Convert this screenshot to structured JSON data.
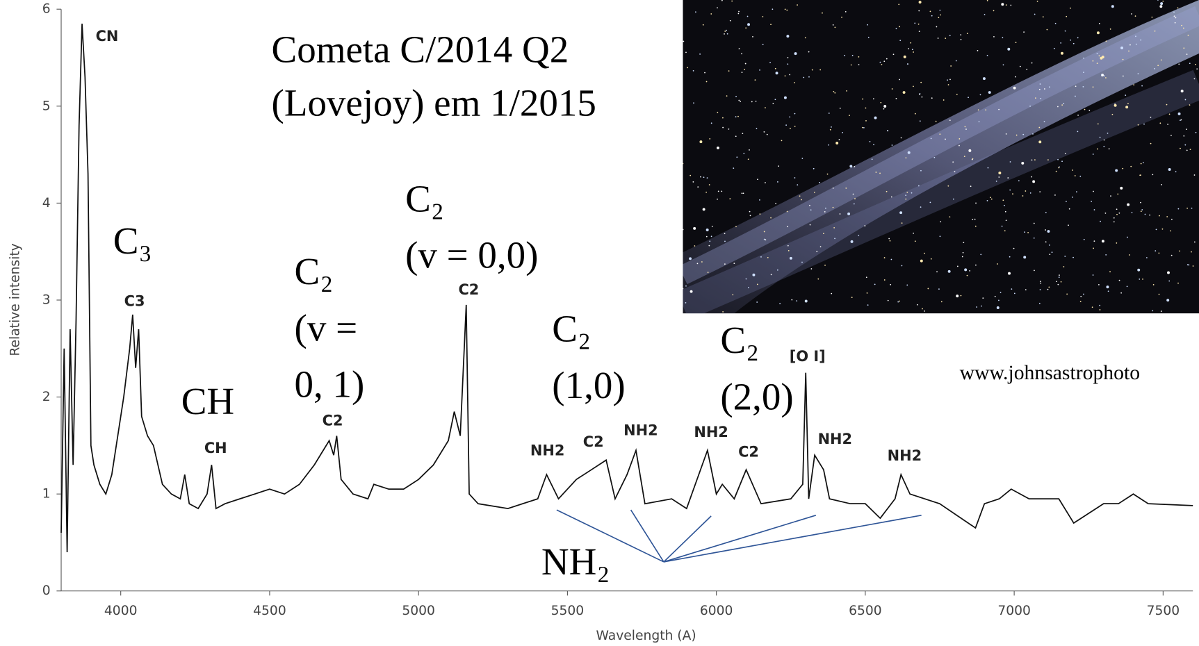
{
  "chart_data": {
    "type": "line",
    "title_lines": [
      "Cometa C/2014 Q2",
      "(Lovejoy) em 1/2015"
    ],
    "x_label": "Wavelength (A)",
    "y_label": "Relative intensity",
    "xlim": [
      3800,
      7600
    ],
    "xticks": [
      4000,
      4500,
      5000,
      5500,
      6000,
      6500,
      7000,
      7500
    ],
    "ylim": [
      0,
      6
    ],
    "yticks": [
      0,
      1,
      2,
      3,
      4,
      5,
      6
    ],
    "color": "#111111",
    "x": [
      3800,
      3810,
      3820,
      3830,
      3840,
      3850,
      3860,
      3870,
      3880,
      3890,
      3900,
      3910,
      3930,
      3950,
      3970,
      3990,
      4010,
      4030,
      4040,
      4050,
      4060,
      4070,
      4090,
      4110,
      4140,
      4170,
      4200,
      4215,
      4230,
      4260,
      4290,
      4305,
      4320,
      4350,
      4400,
      4450,
      4500,
      4550,
      4600,
      4650,
      4680,
      4700,
      4715,
      4725,
      4740,
      4780,
      4830,
      4850,
      4900,
      4950,
      5000,
      5050,
      5100,
      5120,
      5140,
      5160,
      5170,
      5200,
      5300,
      5400,
      5430,
      5470,
      5530,
      5580,
      5630,
      5660,
      5700,
      5730,
      5760,
      5850,
      5900,
      5970,
      6000,
      6020,
      6060,
      6100,
      6150,
      6250,
      6290,
      6300,
      6310,
      6330,
      6360,
      6380,
      6450,
      6500,
      6550,
      6600,
      6620,
      6650,
      6750,
      6870,
      6900,
      6950,
      6990,
      7050,
      7150,
      7200,
      7300,
      7350,
      7400,
      7450,
      7600
    ],
    "values": [
      0.6,
      2.5,
      0.4,
      2.7,
      1.3,
      2.8,
      4.8,
      5.85,
      5.3,
      4.3,
      1.5,
      1.3,
      1.1,
      1.0,
      1.2,
      1.6,
      2.0,
      2.5,
      2.85,
      2.3,
      2.7,
      1.8,
      1.6,
      1.5,
      1.1,
      1.0,
      0.95,
      1.2,
      0.9,
      0.85,
      1.0,
      1.3,
      0.85,
      0.9,
      0.95,
      1.0,
      1.05,
      1.0,
      1.1,
      1.3,
      1.45,
      1.55,
      1.4,
      1.6,
      1.15,
      1.0,
      0.95,
      1.1,
      1.05,
      1.05,
      1.15,
      1.3,
      1.55,
      1.85,
      1.6,
      2.95,
      1.0,
      0.9,
      0.85,
      0.95,
      1.2,
      0.95,
      1.15,
      1.25,
      1.35,
      0.95,
      1.2,
      1.45,
      0.9,
      0.95,
      0.85,
      1.45,
      1.0,
      1.1,
      0.95,
      1.25,
      0.9,
      0.95,
      1.1,
      2.25,
      0.95,
      1.4,
      1.25,
      0.95,
      0.9,
      0.9,
      0.75,
      0.95,
      1.2,
      1.0,
      0.9,
      0.65,
      0.9,
      0.95,
      1.05,
      0.95,
      0.95,
      0.7,
      0.9,
      0.9,
      1.0,
      0.9,
      0.88
    ],
    "peak_labels": [
      "CN",
      "C3",
      "CH",
      "C2",
      "C2",
      "NH2",
      "C2",
      "NH2",
      "NH2",
      "C2",
      "[O I]",
      "NH2",
      "NH2"
    ],
    "annotations": [
      [
        "C₃"
      ],
      [
        "CH"
      ],
      [
        "C₂",
        "(v =",
        "0, 1)"
      ],
      [
        "C₂",
        "(v = 0,0)"
      ],
      [
        "C₂",
        "(1,0)"
      ],
      [
        "C₂",
        "(2,0)"
      ],
      [
        "NH₂"
      ]
    ],
    "credit": "www.johnsastrophoto"
  }
}
